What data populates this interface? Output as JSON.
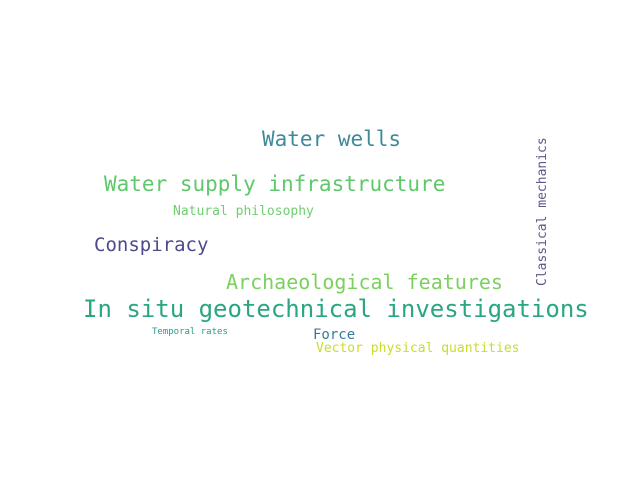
{
  "words": [
    {
      "text": "Water wells",
      "color": "#3f8a9a"
    },
    {
      "text": "Water supply infrastructure",
      "color": "#5ec86a"
    },
    {
      "text": "Natural philosophy",
      "color": "#6fcf6f"
    },
    {
      "text": "Conspiracy",
      "color": "#4b4a8c"
    },
    {
      "text": "Archaeological features",
      "color": "#7cd060"
    },
    {
      "text": "In situ geotechnical investigations",
      "color": "#2aa682"
    },
    {
      "text": "Temporal rates",
      "color": "#2a9a8a"
    },
    {
      "text": "Force",
      "color": "#347c96"
    },
    {
      "text": "Vector physical quantities",
      "color": "#c9dc2c"
    },
    {
      "text": "Classical mechanics",
      "color": "#5a5888"
    }
  ]
}
